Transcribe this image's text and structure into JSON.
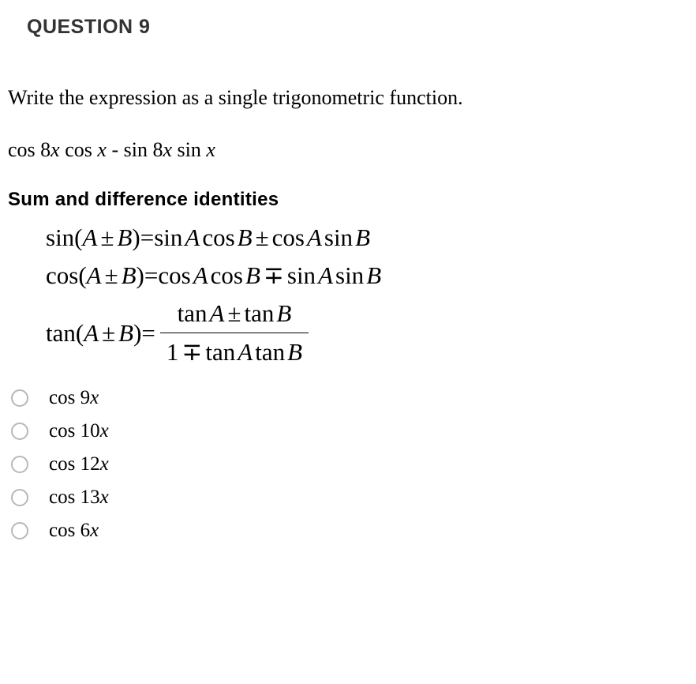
{
  "question_label": "QUESTION 9",
  "prompt": "Write the expression as a single trigonometric function.",
  "expression": {
    "fn1": "cos",
    "arg1_num": "8",
    "arg1_var": "x",
    "fn2": "cos",
    "arg2_var": "x",
    "op": " - ",
    "fn3": "sin",
    "arg3_num": "8",
    "arg3_var": "x",
    "fn4": "sin",
    "arg4_var": "x"
  },
  "identities_header": "Sum and difference identities",
  "identities": {
    "sin": {
      "left_fn": "sin(",
      "A": "A",
      "pm1": "±",
      "B": "B",
      "right_paren": ")",
      "eq": " = ",
      "r_fn1": "sin",
      "r_A1": "A",
      "r_fn2": "cos",
      "r_B1": "B",
      "pm2": "±",
      "r_fn3": "cos",
      "r_A2": "A",
      "r_fn4": "sin",
      "r_B2": "B"
    },
    "cos": {
      "left_fn": "cos(",
      "A": "A",
      "pm1": "±",
      "B": "B",
      "right_paren": ")",
      "eq": " = ",
      "r_fn1": "cos",
      "r_A1": "A",
      "r_fn2": "cos",
      "r_B1": "B",
      "mp": "∓",
      "r_fn3": "sin",
      "r_A2": "A",
      "r_fn4": "sin",
      "r_B2": "B"
    },
    "tan": {
      "left_fn": "tan(",
      "A": "A",
      "pm1": "±",
      "B": "B",
      "right_paren": ")",
      "eq": " = ",
      "num_fn1": "tan",
      "num_A": "A",
      "num_pm": "±",
      "num_fn2": "tan",
      "num_B": "B",
      "den_1": "1",
      "den_mp": "∓",
      "den_fn1": "tan",
      "den_A": "A",
      "den_fn2": "tan",
      "den_B": "B"
    }
  },
  "options": [
    {
      "fn": "cos",
      "num": "9",
      "var": "x"
    },
    {
      "fn": "cos",
      "num": "10",
      "var": "x"
    },
    {
      "fn": "cos",
      "num": "12",
      "var": "x"
    },
    {
      "fn": "cos",
      "num": "13",
      "var": "x"
    },
    {
      "fn": "cos",
      "num": "6",
      "var": "x"
    }
  ],
  "colors": {
    "text": "#000000",
    "header": "#333333",
    "radio_border": "#b8b8b8",
    "background": "#ffffff"
  },
  "fonts": {
    "header_family": "Arial",
    "header_size_pt": 19,
    "body_family": "Times New Roman",
    "body_size_pt": 20,
    "identities_size_pt": 23
  }
}
